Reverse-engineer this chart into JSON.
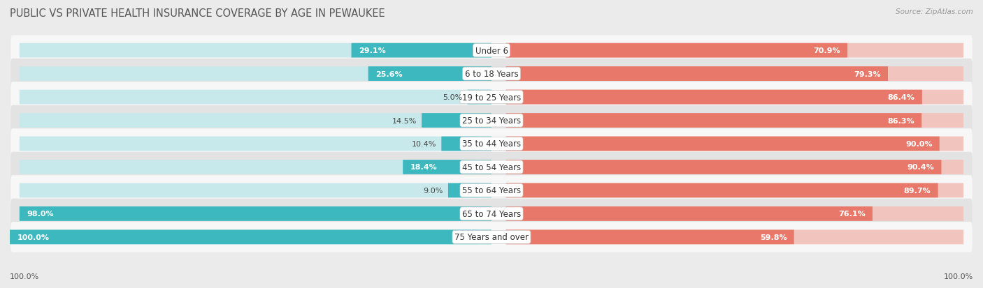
{
  "title": "PUBLIC VS PRIVATE HEALTH INSURANCE COVERAGE BY AGE IN PEWAUKEE",
  "source": "Source: ZipAtlas.com",
  "categories": [
    "Under 6",
    "6 to 18 Years",
    "19 to 25 Years",
    "25 to 34 Years",
    "35 to 44 Years",
    "45 to 54 Years",
    "55 to 64 Years",
    "65 to 74 Years",
    "75 Years and over"
  ],
  "public_values": [
    29.1,
    25.6,
    5.0,
    14.5,
    10.4,
    18.4,
    9.0,
    98.0,
    100.0
  ],
  "private_values": [
    70.9,
    79.3,
    86.4,
    86.3,
    90.0,
    90.4,
    89.7,
    76.1,
    59.8
  ],
  "public_color": "#3db8bf",
  "private_color": "#e8796a",
  "public_color_light": "#c8e9eb",
  "private_color_light": "#f2c4be",
  "background_color": "#ebebeb",
  "row_bg_even": "#f7f7f7",
  "row_bg_odd": "#e3e3e3",
  "label_fontsize": 8.5,
  "title_fontsize": 10.5,
  "value_fontsize": 8.0,
  "axis_label_fontsize": 8.0
}
